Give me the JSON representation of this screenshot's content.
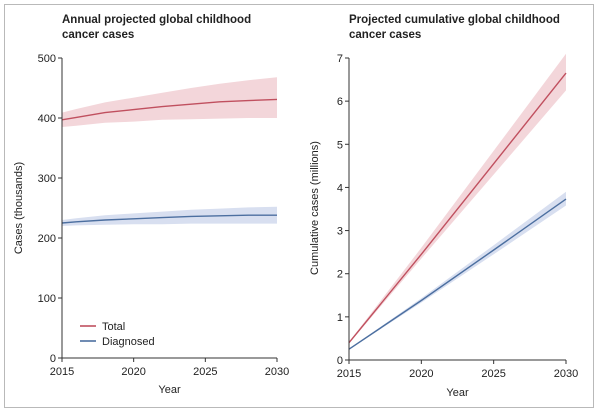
{
  "chart_data": [
    {
      "type": "line",
      "title_lines": [
        "Annual projected global childhood",
        "cancer cases"
      ],
      "xlabel": "Year",
      "ylabel": "Cases (thousands)",
      "xlim": [
        2015,
        2030
      ],
      "ylim": [
        0,
        500
      ],
      "xticks": [
        2015,
        2020,
        2025,
        2030
      ],
      "yticks": [
        0,
        100,
        200,
        300,
        400,
        500
      ],
      "legend": "bottom-left",
      "grid": false,
      "series": [
        {
          "name": "Total",
          "color": "#c0505f",
          "band_color": "#f3d6da",
          "x": [
            2015,
            2016,
            2018,
            2020,
            2022,
            2024,
            2026,
            2028,
            2030
          ],
          "y": [
            397,
            401,
            409,
            414,
            419,
            423,
            427,
            429,
            431
          ],
          "lower": [
            385,
            387,
            392,
            394,
            397,
            398,
            399,
            400,
            400
          ],
          "upper": [
            409,
            415,
            426,
            434,
            442,
            450,
            457,
            463,
            468
          ]
        },
        {
          "name": "Diagnosed",
          "color": "#4c6fa0",
          "band_color": "#d8dff0",
          "x": [
            2015,
            2016,
            2018,
            2020,
            2022,
            2024,
            2026,
            2028,
            2030
          ],
          "y": [
            225,
            227,
            230,
            232,
            234,
            236,
            237,
            238,
            238
          ],
          "lower": [
            220,
            221,
            222,
            223,
            223,
            224,
            224,
            224,
            224
          ],
          "upper": [
            230,
            233,
            238,
            241,
            244,
            247,
            249,
            251,
            252
          ]
        }
      ]
    },
    {
      "type": "line",
      "title_lines": [
        "Projected cumulative global childhood",
        "cancer cases"
      ],
      "xlabel": "Year",
      "ylabel": "Cumulative cases (millions)",
      "xlim": [
        2015,
        2030
      ],
      "ylim": [
        0,
        7
      ],
      "xticks": [
        2015,
        2020,
        2025,
        2030
      ],
      "yticks": [
        0,
        1,
        2,
        3,
        4,
        5,
        6,
        7
      ],
      "grid": false,
      "series": [
        {
          "name": "Total",
          "color": "#c0505f",
          "band_color": "#f3d6da",
          "x": [
            2015,
            2020,
            2025,
            2030
          ],
          "y": [
            0.4,
            2.45,
            4.55,
            6.65
          ],
          "lower": [
            0.38,
            2.35,
            4.3,
            6.25
          ],
          "upper": [
            0.42,
            2.6,
            4.85,
            7.1
          ]
        },
        {
          "name": "Diagnosed",
          "color": "#4c6fa0",
          "band_color": "#d8dff0",
          "x": [
            2015,
            2020,
            2025,
            2030
          ],
          "y": [
            0.25,
            1.38,
            2.55,
            3.73
          ],
          "lower": [
            0.24,
            1.33,
            2.45,
            3.58
          ],
          "upper": [
            0.26,
            1.43,
            2.66,
            3.9
          ]
        }
      ]
    }
  ]
}
